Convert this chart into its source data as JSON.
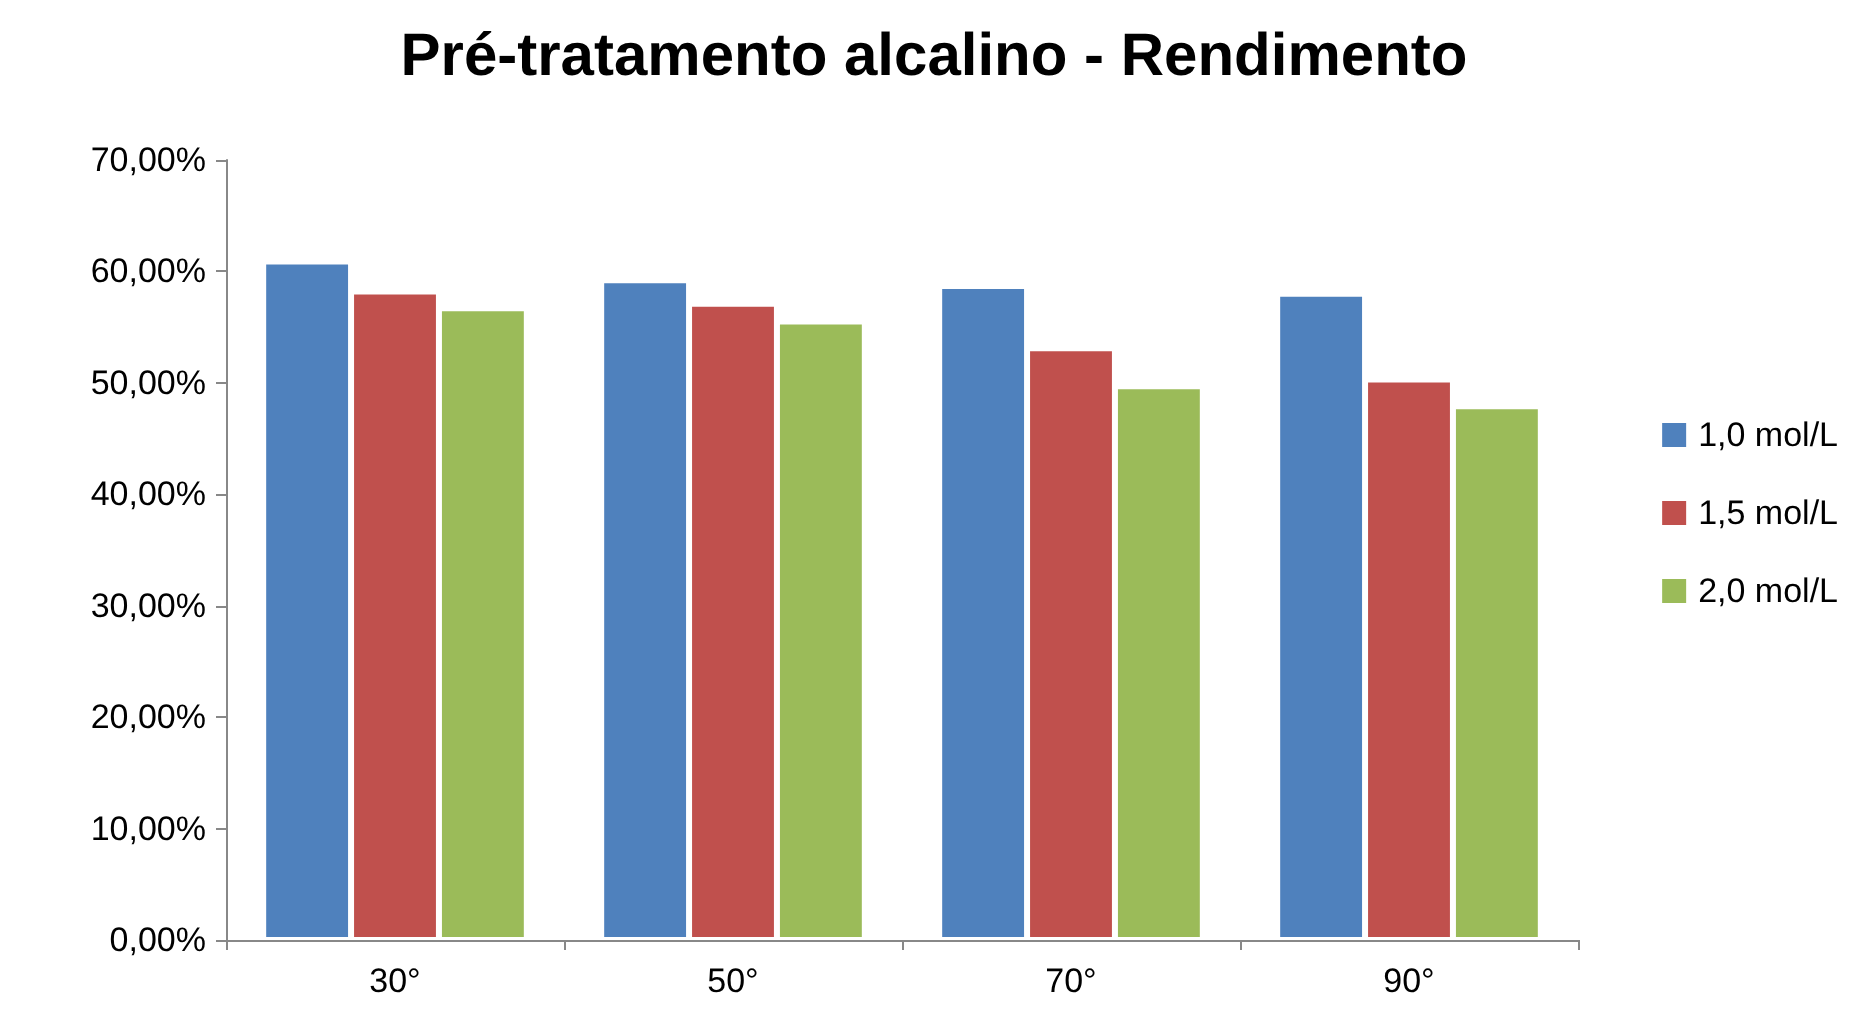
{
  "chart_data": {
    "type": "bar",
    "title": "Pré-tratamento alcalino - Rendimento",
    "categories": [
      "30°",
      "50°",
      "70°",
      "90°"
    ],
    "series": [
      {
        "name": "1,0 mol/L",
        "color": "#4f81bd",
        "values": [
          60.9,
          59.2,
          58.7,
          58.0
        ]
      },
      {
        "name": "1,5 mol/L",
        "color": "#c0504d",
        "values": [
          58.2,
          57.1,
          53.1,
          50.3
        ]
      },
      {
        "name": "2,0 mol/L",
        "color": "#9bbb59",
        "values": [
          56.7,
          55.5,
          49.7,
          47.9
        ]
      }
    ],
    "ylim": [
      0,
      70
    ],
    "yticks": [
      {
        "value": 0,
        "label": "0,00%"
      },
      {
        "value": 10,
        "label": "10,00%"
      },
      {
        "value": 20,
        "label": "20,00%"
      },
      {
        "value": 30,
        "label": "30,00%"
      },
      {
        "value": 40,
        "label": "40,00%"
      },
      {
        "value": 50,
        "label": "50,00%"
      },
      {
        "value": 60,
        "label": "60,00%"
      },
      {
        "value": 70,
        "label": "70,00%"
      }
    ],
    "grid": false,
    "legend": "right"
  }
}
